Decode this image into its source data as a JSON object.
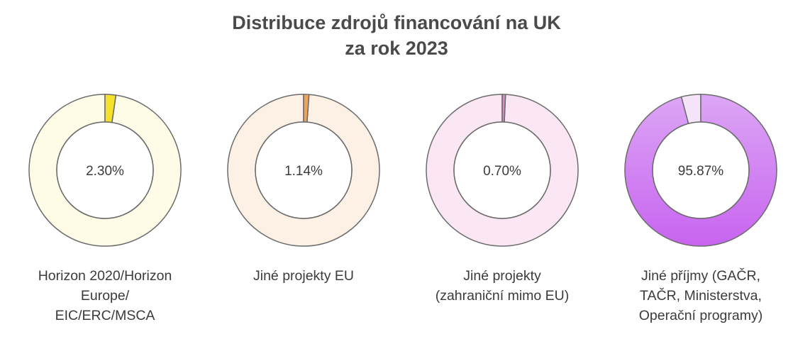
{
  "title": {
    "line1": "Distribuce zdrojů financování na UK",
    "line2": "za rok 2023"
  },
  "chart_data": {
    "type": "pie",
    "title": "Distribuce zdrojů financování na UK za rok 2023",
    "style": "donut",
    "items": [
      {
        "value": 2.3,
        "label": "2.30%",
        "caption_lines": [
          "Horizon 2020/Horizon",
          "Europe/",
          "EIC/ERC/MSCA"
        ],
        "color": "#f5e12a",
        "track_color": "#fefce6",
        "stroke_color": "#6b6b6b"
      },
      {
        "value": 1.14,
        "label": "1.14%",
        "caption_lines": [
          "Jiné projekty EU"
        ],
        "color": "#f2a35a",
        "track_color": "#fdf1e6",
        "stroke_color": "#6b6b6b"
      },
      {
        "value": 0.7,
        "label": "0.70%",
        "caption_lines": [
          "Jiné projekty",
          "(zahraniční mimo EU)"
        ],
        "color": "#d98cc9",
        "track_color": "#fbe6f4",
        "stroke_color": "#6b6b6b"
      },
      {
        "value": 95.87,
        "label": "95.87%",
        "caption_lines": [
          "Jiné příjmy (GAČR,",
          "TAČR, Ministerstva,",
          "Operační programy)"
        ],
        "color": "#c864f0",
        "color_light": "#dca6f5",
        "track_color": "#f6e4fb",
        "stroke_color": "#6b6b6b"
      }
    ]
  }
}
